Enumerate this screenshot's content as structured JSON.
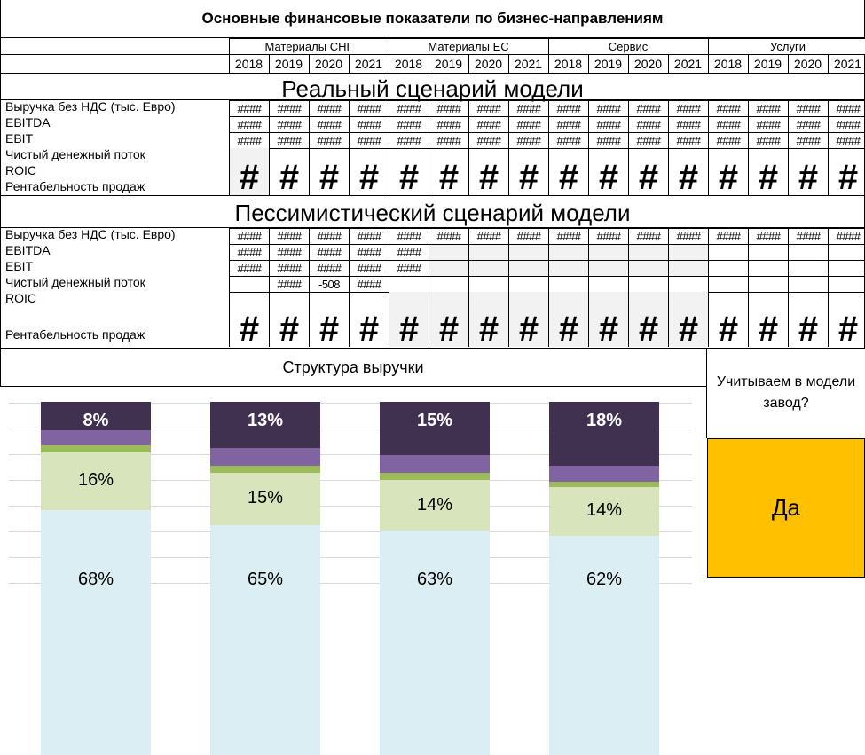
{
  "title": "Основные финансовые показатели по бизнес-направлениям",
  "groups": [
    "Материалы СНГ",
    "Материалы ЕС",
    "Сервис",
    "Услуги"
  ],
  "years": [
    "2018",
    "2019",
    "2020",
    "2021",
    "2018",
    "2019",
    "2020",
    "2021",
    "2018",
    "2019",
    "2020",
    "2021",
    "2018",
    "2019",
    "2020",
    "2021"
  ],
  "scenario_real": {
    "heading": "Реальный сценарий модели",
    "rows": [
      "Выручка без НДС (тыс. Евро)",
      "EBITDA",
      "EBIT",
      "Чистый денежный поток",
      "ROIC",
      "Рентабельность продаж"
    ],
    "cell_text": "####",
    "big_text": "#"
  },
  "scenario_pess": {
    "heading": "Пессимистический сценарий  модели",
    "rows": [
      "Выручка без НДС (тыс. Евро)",
      "EBITDA",
      "EBIT",
      "Чистый денежный поток",
      "ROIC",
      "Рентабельность продаж"
    ],
    "cell_text": "####",
    "cashflow_2020": "-508",
    "big_text": "#"
  },
  "revenue_structure": {
    "heading": "Структура выручки"
  },
  "side_question": "Учитываем в модели завод?",
  "side_answer": "Да",
  "colors": {
    "dark_purple": "#403151",
    "purple": "#8064a2",
    "green": "#9bbb59",
    "light_green": "#d7e4bc",
    "light_blue": "#dbeef4",
    "answer_bg": "#ffc000"
  },
  "chart_data": {
    "type": "bar",
    "stacked": true,
    "categories": [
      "",
      "",
      "",
      ""
    ],
    "series": [
      {
        "values": [
          68,
          65,
          63,
          62
        ],
        "labels": [
          "68%",
          "65%",
          "63%",
          "62%"
        ],
        "color": "#dbeef4"
      },
      {
        "values": [
          16,
          15,
          14,
          14
        ],
        "labels": [
          "16%",
          "15%",
          "14%",
          "14%"
        ],
        "color": "#d7e4bc"
      },
      {
        "values": [
          2,
          2,
          2,
          1.5
        ],
        "labels": [],
        "color": "#9bbb59"
      },
      {
        "values": [
          4,
          5,
          5,
          4.5
        ],
        "labels": [],
        "color": "#8064a2"
      },
      {
        "values": [
          8,
          13,
          15,
          18
        ],
        "labels": [
          "8%",
          "13%",
          "15%",
          "18%"
        ],
        "color": "#403151"
      }
    ],
    "grid": true,
    "legend": "none"
  }
}
